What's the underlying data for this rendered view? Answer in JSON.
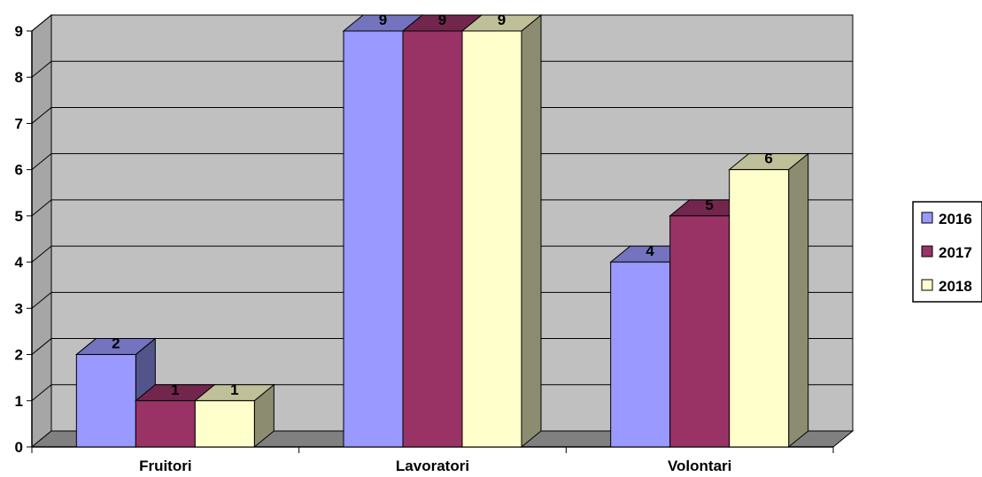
{
  "chart_data": {
    "type": "bar",
    "title": "",
    "xlabel": "",
    "ylabel": "",
    "categories": [
      "Fruitori",
      "Lavoratori",
      "Volontari"
    ],
    "series": [
      {
        "name": "2016",
        "values": [
          2,
          9,
          4
        ],
        "color": "#9999ff"
      },
      {
        "name": "2017",
        "values": [
          1,
          9,
          5
        ],
        "color": "#993366"
      },
      {
        "name": "2018",
        "values": [
          1,
          9,
          6
        ],
        "color": "#ffffcc"
      }
    ],
    "ylim": [
      0,
      9
    ],
    "yticks": [
      "0",
      "1",
      "2",
      "3",
      "4",
      "5",
      "6",
      "7",
      "8",
      "9"
    ],
    "grid": true,
    "legend_position": "right",
    "data_labels": true,
    "colors": {
      "wall": "#c0c0c0",
      "floor": "#808080",
      "axis": "#000000"
    }
  }
}
